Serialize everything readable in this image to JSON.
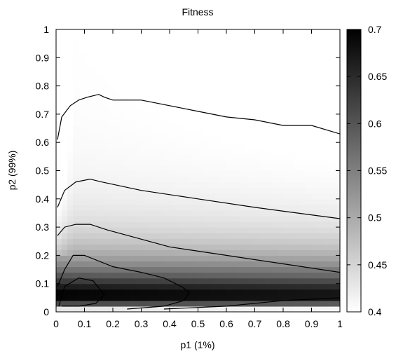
{
  "chart_data": {
    "type": "heatmap",
    "title": "Fitness",
    "xlabel": "p1 (1%)",
    "ylabel": "p2 (99%)",
    "xlim": [
      0,
      1
    ],
    "ylim": [
      0,
      1
    ],
    "x_ticks": [
      "0",
      "0.1",
      "0.2",
      "0.3",
      "0.4",
      "0.5",
      "0.6",
      "0.7",
      "0.8",
      "0.9",
      "1"
    ],
    "y_ticks": [
      "0",
      "0.1",
      "0.2",
      "0.3",
      "0.4",
      "0.5",
      "0.6",
      "0.7",
      "0.8",
      "0.9",
      "1"
    ],
    "colorbar": {
      "range": [
        0.4,
        0.7
      ],
      "ticks": [
        "0.4",
        "0.45",
        "0.5",
        "0.55",
        "0.6",
        "0.65",
        "0.7"
      ],
      "low_color": "#ffffff",
      "high_color": "#000000"
    },
    "peak": {
      "x": 0.04,
      "y": 0.06,
      "value": 0.7
    },
    "contours": [
      {
        "points": [
          [
            0.01,
            0.02
          ],
          [
            0.03,
            0.09
          ],
          [
            0.08,
            0.12
          ],
          [
            0.13,
            0.11
          ],
          [
            0.17,
            0.06
          ],
          [
            0.14,
            0.03
          ],
          [
            0.08,
            0.02
          ],
          [
            0.02,
            0.02
          ]
        ]
      },
      {
        "points": [
          [
            0.005,
            0.09
          ],
          [
            0.03,
            0.15
          ],
          [
            0.06,
            0.2
          ],
          [
            0.1,
            0.2
          ],
          [
            0.2,
            0.16
          ],
          [
            0.3,
            0.14
          ],
          [
            0.38,
            0.12
          ],
          [
            0.44,
            0.09
          ],
          [
            0.47,
            0.07
          ],
          [
            0.45,
            0.04
          ],
          [
            0.38,
            0.02
          ],
          [
            0.25,
            0.01
          ]
        ]
      },
      {
        "points": [
          [
            0.005,
            0.27
          ],
          [
            0.03,
            0.3
          ],
          [
            0.07,
            0.31
          ],
          [
            0.12,
            0.31
          ],
          [
            0.18,
            0.29
          ],
          [
            0.4,
            0.23
          ],
          [
            0.6,
            0.2
          ],
          [
            0.8,
            0.17
          ],
          [
            1.0,
            0.14
          ]
        ]
      },
      {
        "points": [
          [
            0.005,
            0.37
          ],
          [
            0.03,
            0.43
          ],
          [
            0.07,
            0.46
          ],
          [
            0.12,
            0.47
          ],
          [
            0.16,
            0.46
          ],
          [
            0.3,
            0.43
          ],
          [
            0.5,
            0.4
          ],
          [
            0.7,
            0.37
          ],
          [
            0.85,
            0.35
          ],
          [
            1.0,
            0.33
          ]
        ]
      },
      {
        "points": [
          [
            0.005,
            0.61
          ],
          [
            0.02,
            0.69
          ],
          [
            0.05,
            0.73
          ],
          [
            0.08,
            0.75
          ],
          [
            0.11,
            0.76
          ],
          [
            0.15,
            0.77
          ],
          [
            0.17,
            0.76
          ],
          [
            0.2,
            0.75
          ],
          [
            0.3,
            0.75
          ],
          [
            0.4,
            0.73
          ],
          [
            0.5,
            0.71
          ],
          [
            0.6,
            0.69
          ],
          [
            0.7,
            0.68
          ],
          [
            0.8,
            0.66
          ],
          [
            0.9,
            0.66
          ],
          [
            1.0,
            0.63
          ]
        ]
      },
      {
        "points": [
          [
            0.38,
            0.01
          ],
          [
            0.6,
            0.02
          ],
          [
            0.8,
            0.04
          ],
          [
            1.0,
            0.05
          ]
        ]
      }
    ]
  }
}
